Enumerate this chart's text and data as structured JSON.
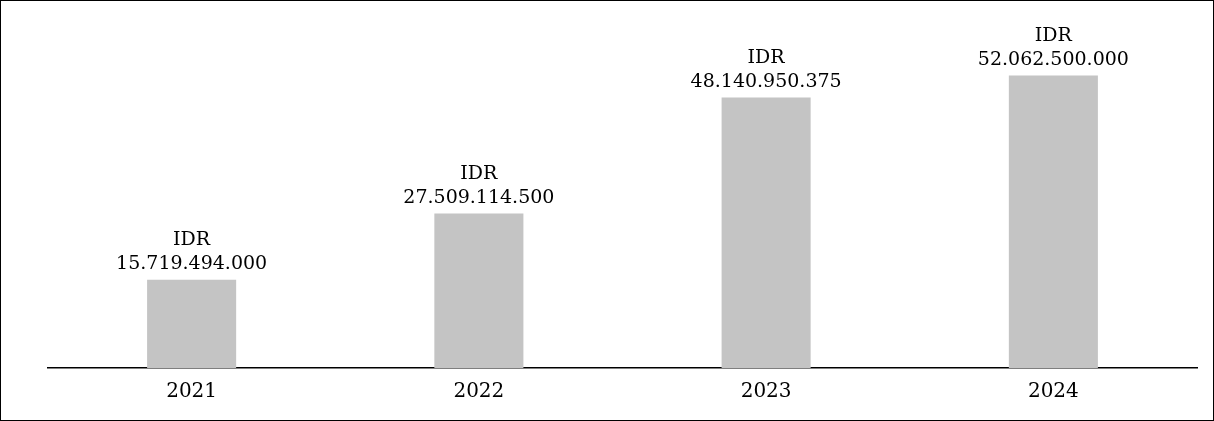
{
  "chart_data": {
    "type": "bar",
    "categories": [
      "2021",
      "2022",
      "2023",
      "2024"
    ],
    "values": [
      15719494000,
      27509114500,
      48140950375,
      52062500000
    ],
    "value_labels": [
      "IDR 15.719.494.000",
      "IDR 27.509.114.500",
      "IDR 48.140.950.375",
      "IDR 52.062.500.000"
    ],
    "color": "#c4c4c4",
    "grid": false,
    "legend": false
  }
}
